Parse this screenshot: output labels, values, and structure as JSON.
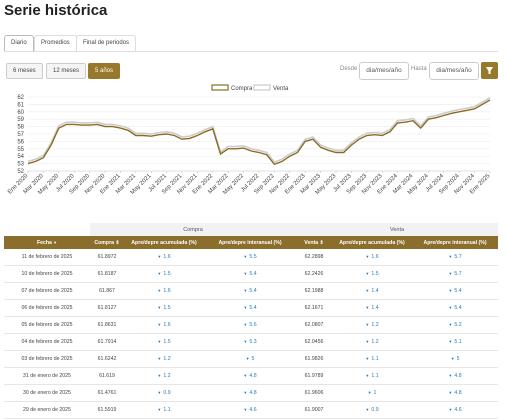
{
  "header": {
    "title": "Serie histórica"
  },
  "tabs": [
    "Diario",
    "Promedios",
    "Final de periodos"
  ],
  "ranges": [
    "6 meses",
    "12 meses",
    "5 años"
  ],
  "date_filter": {
    "from_label": "Desde",
    "from_placeholder": "dia/mes/año",
    "to_label": "Hasta",
    "to_placeholder": "dia/mes/año"
  },
  "chart_data": {
    "type": "line",
    "categories": [
      "Ene 2020",
      null,
      "Mar 2020",
      null,
      "May 2020",
      null,
      "Jul 2020",
      null,
      "Sep 2020",
      null,
      "Nov 2020",
      null,
      "Ene 2021",
      null,
      "Mar 2021",
      null,
      "May 2021",
      null,
      "Jul 2021",
      null,
      "Sep 2021",
      null,
      "Nov 2021",
      null,
      "Ene 2022",
      null,
      "Mar 2022",
      null,
      "May 2022",
      null,
      "Jul 2022",
      null,
      "Sep 2022",
      null,
      "Nov 2022",
      null,
      "Ene 2023",
      null,
      "Mar 2023",
      null,
      "May 2023",
      null,
      "Jul 2023",
      null,
      "Sep 2023",
      null,
      "Nov 2023",
      null,
      "Ene 2024",
      null,
      "Mar 2024",
      null,
      "May 2024",
      null,
      "Jul 2024",
      null,
      "Sep 2024",
      null,
      "Nov 2024",
      null,
      "Ene 2025"
    ],
    "series": [
      {
        "name": "Compra",
        "color": "#8a6d22",
        "values": [
          53.0,
          53.3,
          53.8,
          55.5,
          57.8,
          58.3,
          58.3,
          58.2,
          58.2,
          58.3,
          58.0,
          58.0,
          57.8,
          57.5,
          56.8,
          56.8,
          56.7,
          56.9,
          57.0,
          56.8,
          56.3,
          56.4,
          56.8,
          57.3,
          57.7,
          54.3,
          55.0,
          55.0,
          55.1,
          54.7,
          54.5,
          54.2,
          52.9,
          53.3,
          54.0,
          54.5,
          56.0,
          56.3,
          55.2,
          54.8,
          54.5,
          54.5,
          55.5,
          56.3,
          56.8,
          56.9,
          56.8,
          57.3,
          58.5,
          58.6,
          58.8,
          57.8,
          59.0,
          59.2,
          59.5,
          59.8,
          60.0,
          60.2,
          60.4,
          61.0,
          61.6
        ]
      },
      {
        "name": "Venta",
        "color": "#cccccc",
        "values": [
          53.3,
          53.6,
          54.1,
          55.8,
          58.1,
          58.6,
          58.6,
          58.5,
          58.5,
          58.6,
          58.3,
          58.3,
          58.1,
          57.8,
          57.1,
          57.1,
          57.0,
          57.2,
          57.3,
          57.1,
          56.6,
          56.7,
          57.1,
          57.6,
          58.0,
          54.6,
          55.3,
          55.3,
          55.4,
          55.0,
          54.8,
          54.5,
          53.2,
          53.6,
          54.3,
          54.8,
          56.3,
          56.6,
          55.5,
          55.1,
          54.8,
          54.8,
          55.8,
          56.6,
          57.1,
          57.2,
          57.1,
          57.6,
          58.8,
          58.9,
          59.1,
          58.1,
          59.3,
          59.5,
          59.8,
          60.1,
          60.3,
          60.5,
          60.7,
          61.3,
          61.9
        ]
      }
    ],
    "ylim": [
      52,
      62
    ],
    "yticks": [
      52,
      53,
      54,
      55,
      56,
      57,
      58,
      59,
      60,
      61,
      62
    ],
    "grid": true,
    "legend": "top"
  },
  "table": {
    "groups": [
      "Compra",
      "Venta"
    ],
    "columns": [
      "Fecha",
      "Compra",
      "Apre/depre acumulada (%)",
      "Apre/depre interanual (%)",
      "Venta",
      "Apre/depre acumulada (%)",
      "Apre/depre interanual (%)"
    ],
    "rows": [
      [
        "11 de febrero de 2025",
        "61.8972",
        "1.6",
        "5.5",
        "62.2898",
        "1.6",
        "5.7"
      ],
      [
        "10 de febrero de 2025",
        "61.8187",
        "1.5",
        "5.4",
        "62.2426",
        "1.5",
        "5.7"
      ],
      [
        "07 de febrero de 2025",
        "61.867",
        "1.6",
        "5.4",
        "62.1988",
        "1.4",
        "5.4"
      ],
      [
        "06 de febrero de 2025",
        "61.8127",
        "1.5",
        "5.4",
        "62.1671",
        "1.4",
        "5.4"
      ],
      [
        "05 de febrero de 2025",
        "61.8631",
        "1.6",
        "5.6",
        "62.0807",
        "1.2",
        "5.2"
      ],
      [
        "04 de febrero de 2025",
        "61.7914",
        "1.5",
        "5.3",
        "62.0456",
        "1.2",
        "5.1"
      ],
      [
        "03 de febrero de 2025",
        "61.6242",
        "1.2",
        "5",
        "61.9826",
        "1.1",
        "5"
      ],
      [
        "31 de enero de 2025",
        "61.619",
        "1.2",
        "4.8",
        "61.9789",
        "1.1",
        "4.8"
      ],
      [
        "30 de enero de 2025",
        "61.4761",
        "0.9",
        "4.8",
        "61.9606",
        "1",
        "4.8"
      ],
      [
        "29 de enero de 2025",
        "61.5919",
        "1.1",
        "4.6",
        "61.9007",
        "0.9",
        "4.6"
      ]
    ]
  }
}
